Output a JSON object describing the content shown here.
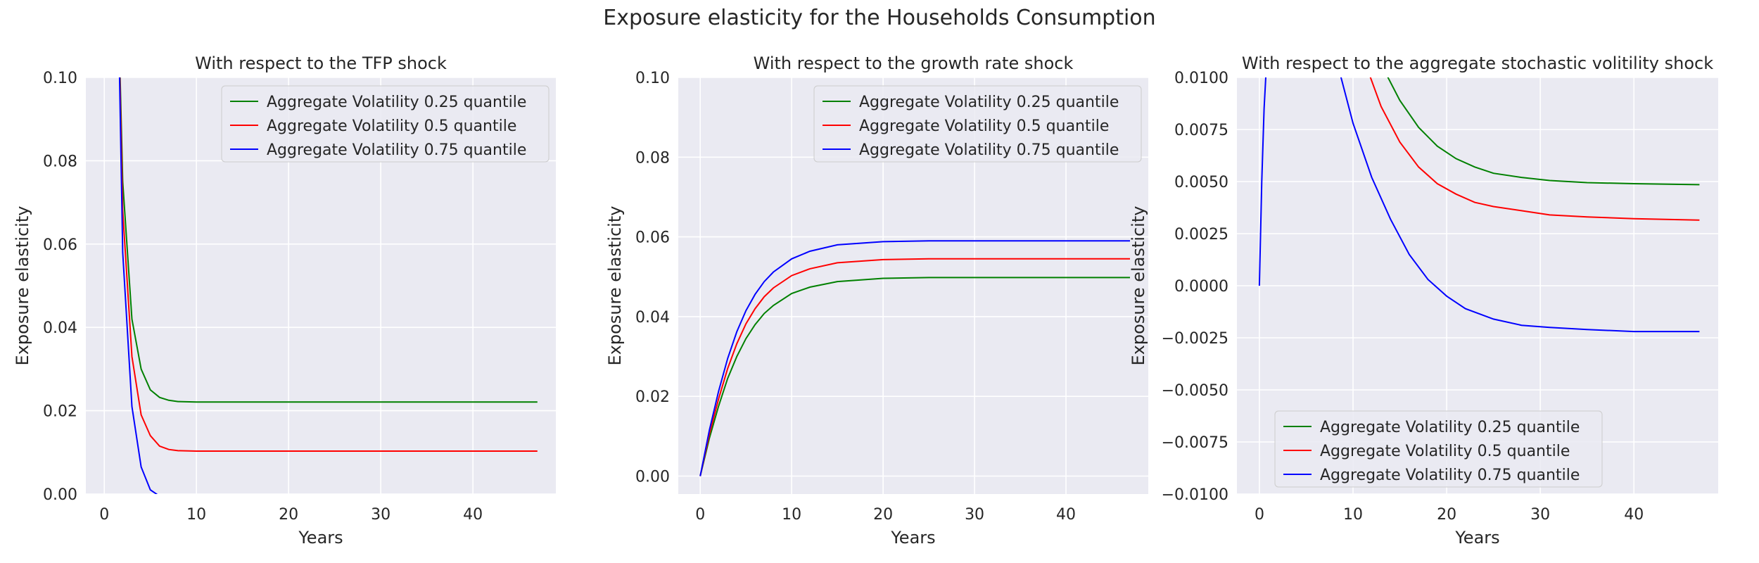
{
  "title": "Exposure elasticity for the Households Consumption",
  "chart_data": [
    {
      "type": "line",
      "title": "With respect to the TFP shock",
      "xlabel": "Years",
      "ylabel": "Exposure elasticity",
      "xlim": [
        -2,
        49
      ],
      "ylim": [
        0,
        0.1
      ],
      "xticks": [
        "0",
        "10",
        "20",
        "30",
        "40"
      ],
      "yticks": [
        "0.00",
        "0.02",
        "0.04",
        "0.06",
        "0.08",
        "0.10"
      ],
      "grid": true,
      "legend_position": "top-right",
      "series": [
        {
          "name": "Aggregate Volatility 0.25 quantile",
          "color": "#008000",
          "x": [
            1.5,
            2,
            3,
            4,
            5,
            6,
            7,
            8,
            10,
            12,
            15,
            20,
            30,
            47
          ],
          "y": [
            0.12,
            0.075,
            0.042,
            0.03,
            0.025,
            0.0232,
            0.0225,
            0.0222,
            0.0221,
            0.0221,
            0.0221,
            0.0221,
            0.0221,
            0.0221
          ]
        },
        {
          "name": "Aggregate Volatility 0.5 quantile",
          "color": "#ff0000",
          "x": [
            1.5,
            2,
            3,
            4,
            5,
            6,
            7,
            8,
            10,
            12,
            15,
            20,
            30,
            47
          ],
          "y": [
            0.12,
            0.068,
            0.033,
            0.019,
            0.014,
            0.0115,
            0.0107,
            0.0104,
            0.0103,
            0.0103,
            0.0103,
            0.0103,
            0.0103,
            0.0103
          ]
        },
        {
          "name": "Aggregate Volatility 0.75 quantile",
          "color": "#0000ff",
          "x": [
            1.5,
            2,
            3,
            4,
            5,
            6
          ],
          "y": [
            0.12,
            0.058,
            0.021,
            0.0065,
            0.001,
            -0.0005
          ]
        }
      ]
    },
    {
      "type": "line",
      "title": "With respect to the growth rate shock",
      "xlabel": "Years",
      "ylabel": "Exposure elasticity",
      "xlim": [
        -2.4,
        49
      ],
      "ylim": [
        -0.0045,
        0.1
      ],
      "xticks": [
        "0",
        "10",
        "20",
        "30",
        "40"
      ],
      "yticks": [
        "0.00",
        "0.02",
        "0.04",
        "0.06",
        "0.08",
        "0.10"
      ],
      "grid": true,
      "legend_position": "top-right",
      "series": [
        {
          "name": "Aggregate Volatility 0.25 quantile",
          "color": "#008000",
          "x": [
            0,
            1,
            2,
            3,
            4,
            5,
            6,
            7,
            8,
            10,
            12,
            15,
            20,
            25,
            30,
            47
          ],
          "y": [
            0,
            0.0095,
            0.0175,
            0.0245,
            0.03,
            0.0345,
            0.038,
            0.0408,
            0.0428,
            0.0458,
            0.0474,
            0.0488,
            0.0496,
            0.0498,
            0.0498,
            0.0498
          ]
        },
        {
          "name": "Aggregate Volatility 0.5 quantile",
          "color": "#ff0000",
          "x": [
            0,
            1,
            2,
            3,
            4,
            5,
            6,
            7,
            8,
            10,
            12,
            15,
            20,
            25,
            30,
            47
          ],
          "y": [
            0,
            0.0105,
            0.0193,
            0.027,
            0.0332,
            0.0382,
            0.042,
            0.045,
            0.0472,
            0.0503,
            0.052,
            0.0535,
            0.0543,
            0.0545,
            0.0545,
            0.0545
          ]
        },
        {
          "name": "Aggregate Volatility 0.75 quantile",
          "color": "#0000ff",
          "x": [
            0,
            1,
            2,
            3,
            4,
            5,
            6,
            7,
            8,
            10,
            12,
            15,
            20,
            25,
            30,
            47
          ],
          "y": [
            0,
            0.0115,
            0.0212,
            0.0295,
            0.0362,
            0.0415,
            0.0456,
            0.0488,
            0.0512,
            0.0545,
            0.0564,
            0.058,
            0.0588,
            0.059,
            0.059,
            0.059
          ]
        }
      ]
    },
    {
      "type": "line",
      "title": "With respect to the aggregate stochastic volitility shock",
      "xlabel": "Years",
      "ylabel": "Exposure elasticity",
      "xlim": [
        -2.4,
        49
      ],
      "ylim": [
        -0.01,
        0.01
      ],
      "xticks": [
        "0",
        "10",
        "20",
        "30",
        "40"
      ],
      "yticks": [
        "−0.0100",
        "−0.0075",
        "−0.0050",
        "−0.0025",
        "0.0000",
        "0.0025",
        "0.0050",
        "0.0075",
        "0.0100"
      ],
      "grid": true,
      "legend_position": "bottom-left",
      "series": [
        {
          "name": "Aggregate Volatility 0.25 quantile",
          "color": "#008000",
          "x": [
            13.5,
            15,
            17,
            19,
            21,
            23,
            25,
            28,
            31,
            35,
            40,
            47
          ],
          "y": [
            0.0102,
            0.0089,
            0.0076,
            0.0067,
            0.0061,
            0.0057,
            0.0054,
            0.0052,
            0.00505,
            0.00495,
            0.0049,
            0.00485
          ]
        },
        {
          "name": "Aggregate Volatility 0.5 quantile",
          "color": "#ff0000",
          "x": [
            11.7,
            13,
            15,
            17,
            19,
            21,
            23,
            25,
            28,
            31,
            35,
            40,
            47
          ],
          "y": [
            0.0102,
            0.0086,
            0.0069,
            0.0057,
            0.0049,
            0.0044,
            0.004,
            0.0038,
            0.0036,
            0.0034,
            0.0033,
            0.00322,
            0.00315
          ]
        },
        {
          "name": "Aggregate Volatility 0.75 quantile",
          "color": "#0000ff",
          "x": [
            0,
            0.25,
            0.5,
            0.7,
            8.6,
            10,
            12,
            14,
            16,
            18,
            20,
            22,
            25,
            28,
            31,
            35,
            40,
            47
          ],
          "y": [
            0,
            0.005,
            0.0085,
            0.0102,
            0.0102,
            0.0078,
            0.0052,
            0.0032,
            0.0015,
            0.0003,
            -0.0005,
            -0.0011,
            -0.0016,
            -0.0019,
            -0.002,
            -0.0021,
            -0.0022,
            -0.0022
          ]
        }
      ]
    }
  ]
}
